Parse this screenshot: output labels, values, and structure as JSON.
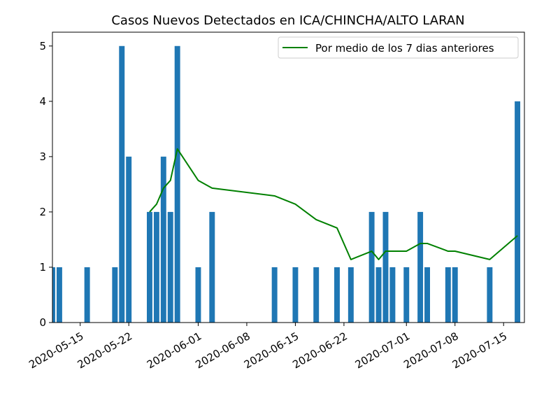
{
  "chart_data": {
    "type": "bar",
    "title": "Casos Nuevos Detectados en ICA/CHINCHA/ALTO LARAN",
    "xlabel": "",
    "ylabel": "",
    "x_type": "date",
    "xlim": [
      "2020-05-11",
      "2020-07-18"
    ],
    "ylim": [
      0,
      5.25
    ],
    "yticks": [
      0,
      1,
      2,
      3,
      4,
      5
    ],
    "xticks": [
      "2020-05-15",
      "2020-05-22",
      "2020-06-01",
      "2020-06-08",
      "2020-06-15",
      "2020-06-22",
      "2020-07-01",
      "2020-07-08",
      "2020-07-15"
    ],
    "grid": false,
    "legend_position": "top-right",
    "series": [
      {
        "kind": "bar",
        "color": "#1f77b4",
        "points": [
          {
            "x": "2020-05-11",
            "y": 1
          },
          {
            "x": "2020-05-12",
            "y": 1
          },
          {
            "x": "2020-05-16",
            "y": 1
          },
          {
            "x": "2020-05-20",
            "y": 1
          },
          {
            "x": "2020-05-21",
            "y": 5
          },
          {
            "x": "2020-05-22",
            "y": 3
          },
          {
            "x": "2020-05-25",
            "y": 2
          },
          {
            "x": "2020-05-26",
            "y": 2
          },
          {
            "x": "2020-05-27",
            "y": 3
          },
          {
            "x": "2020-05-28",
            "y": 2
          },
          {
            "x": "2020-05-29",
            "y": 5
          },
          {
            "x": "2020-06-01",
            "y": 1
          },
          {
            "x": "2020-06-03",
            "y": 2
          },
          {
            "x": "2020-06-12",
            "y": 1
          },
          {
            "x": "2020-06-15",
            "y": 1
          },
          {
            "x": "2020-06-18",
            "y": 1
          },
          {
            "x": "2020-06-21",
            "y": 1
          },
          {
            "x": "2020-06-23",
            "y": 1
          },
          {
            "x": "2020-06-26",
            "y": 2
          },
          {
            "x": "2020-06-27",
            "y": 1
          },
          {
            "x": "2020-06-28",
            "y": 2
          },
          {
            "x": "2020-06-29",
            "y": 1
          },
          {
            "x": "2020-07-01",
            "y": 1
          },
          {
            "x": "2020-07-03",
            "y": 2
          },
          {
            "x": "2020-07-04",
            "y": 1
          },
          {
            "x": "2020-07-07",
            "y": 1
          },
          {
            "x": "2020-07-08",
            "y": 1
          },
          {
            "x": "2020-07-13",
            "y": 1
          },
          {
            "x": "2020-07-17",
            "y": 4
          }
        ]
      },
      {
        "kind": "line",
        "name": "Por medio de los 7 dias anteriores",
        "color": "#008000",
        "points": [
          {
            "x": "2020-05-25",
            "y": 2.0
          },
          {
            "x": "2020-05-26",
            "y": 2.14
          },
          {
            "x": "2020-05-27",
            "y": 2.43
          },
          {
            "x": "2020-05-28",
            "y": 2.57
          },
          {
            "x": "2020-05-29",
            "y": 3.14
          },
          {
            "x": "2020-06-01",
            "y": 2.57
          },
          {
            "x": "2020-06-03",
            "y": 2.43
          },
          {
            "x": "2020-06-12",
            "y": 2.29
          },
          {
            "x": "2020-06-15",
            "y": 2.14
          },
          {
            "x": "2020-06-18",
            "y": 1.86
          },
          {
            "x": "2020-06-21",
            "y": 1.71
          },
          {
            "x": "2020-06-23",
            "y": 1.14
          },
          {
            "x": "2020-06-26",
            "y": 1.29
          },
          {
            "x": "2020-06-27",
            "y": 1.14
          },
          {
            "x": "2020-06-28",
            "y": 1.29
          },
          {
            "x": "2020-06-29",
            "y": 1.29
          },
          {
            "x": "2020-07-01",
            "y": 1.29
          },
          {
            "x": "2020-07-03",
            "y": 1.43
          },
          {
            "x": "2020-07-04",
            "y": 1.43
          },
          {
            "x": "2020-07-07",
            "y": 1.29
          },
          {
            "x": "2020-07-08",
            "y": 1.29
          },
          {
            "x": "2020-07-13",
            "y": 1.14
          },
          {
            "x": "2020-07-17",
            "y": 1.57
          }
        ]
      }
    ]
  }
}
